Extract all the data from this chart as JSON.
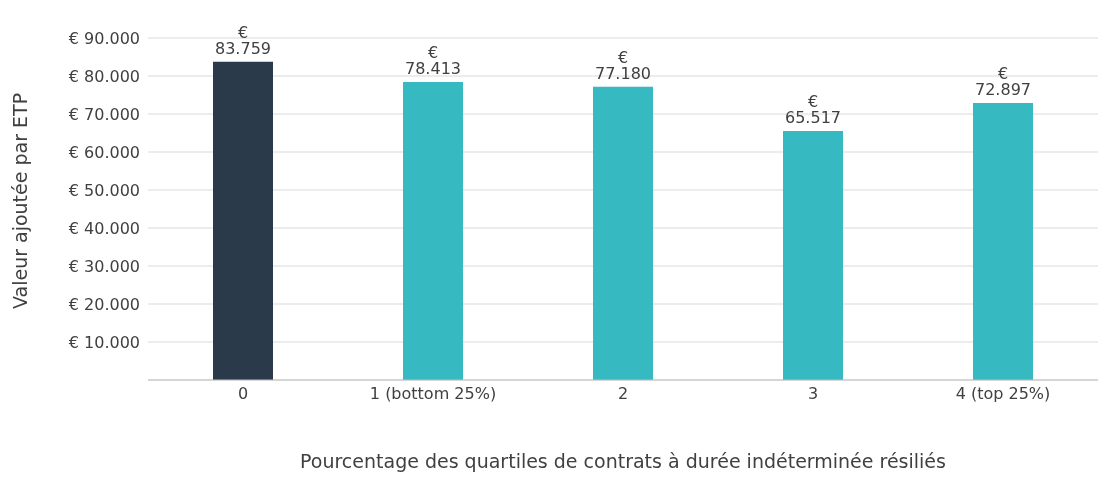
{
  "chart_data": {
    "type": "bar",
    "xlabel": "Pourcentage des quartiles de contrats à durée indéterminée résiliés",
    "ylabel": "Valeur ajoutée par ETP",
    "categories": [
      "0",
      "1 (bottom 25%)",
      "2",
      "3",
      "4 (top 25%)"
    ],
    "values": [
      83759,
      78413,
      77180,
      65517,
      72897
    ],
    "colors": [
      "#2b3a4a",
      "#36b9c1",
      "#36b9c1",
      "#36b9c1",
      "#36b9c1"
    ],
    "value_labels": [
      "€ 83.759",
      "€ 78.413",
      "€ 77.180",
      "€ 65.517",
      "€ 72.897"
    ],
    "ylim": [
      0,
      90000
    ],
    "yticks": [
      {
        "value": 0,
        "label": null
      },
      {
        "value": 10000,
        "label": "€ 10.000"
      },
      {
        "value": 20000,
        "label": "€ 20.000"
      },
      {
        "value": 30000,
        "label": "€ 30.000"
      },
      {
        "value": 40000,
        "label": "€ 40.000"
      },
      {
        "value": 50000,
        "label": "€ 50.000"
      },
      {
        "value": 60000,
        "label": "€ 60.000"
      },
      {
        "value": 70000,
        "label": "€ 70.000"
      },
      {
        "value": 80000,
        "label": "€ 80.000"
      },
      {
        "value": 90000,
        "label": "€ 90.000"
      }
    ],
    "grid": "y",
    "legend": false
  }
}
